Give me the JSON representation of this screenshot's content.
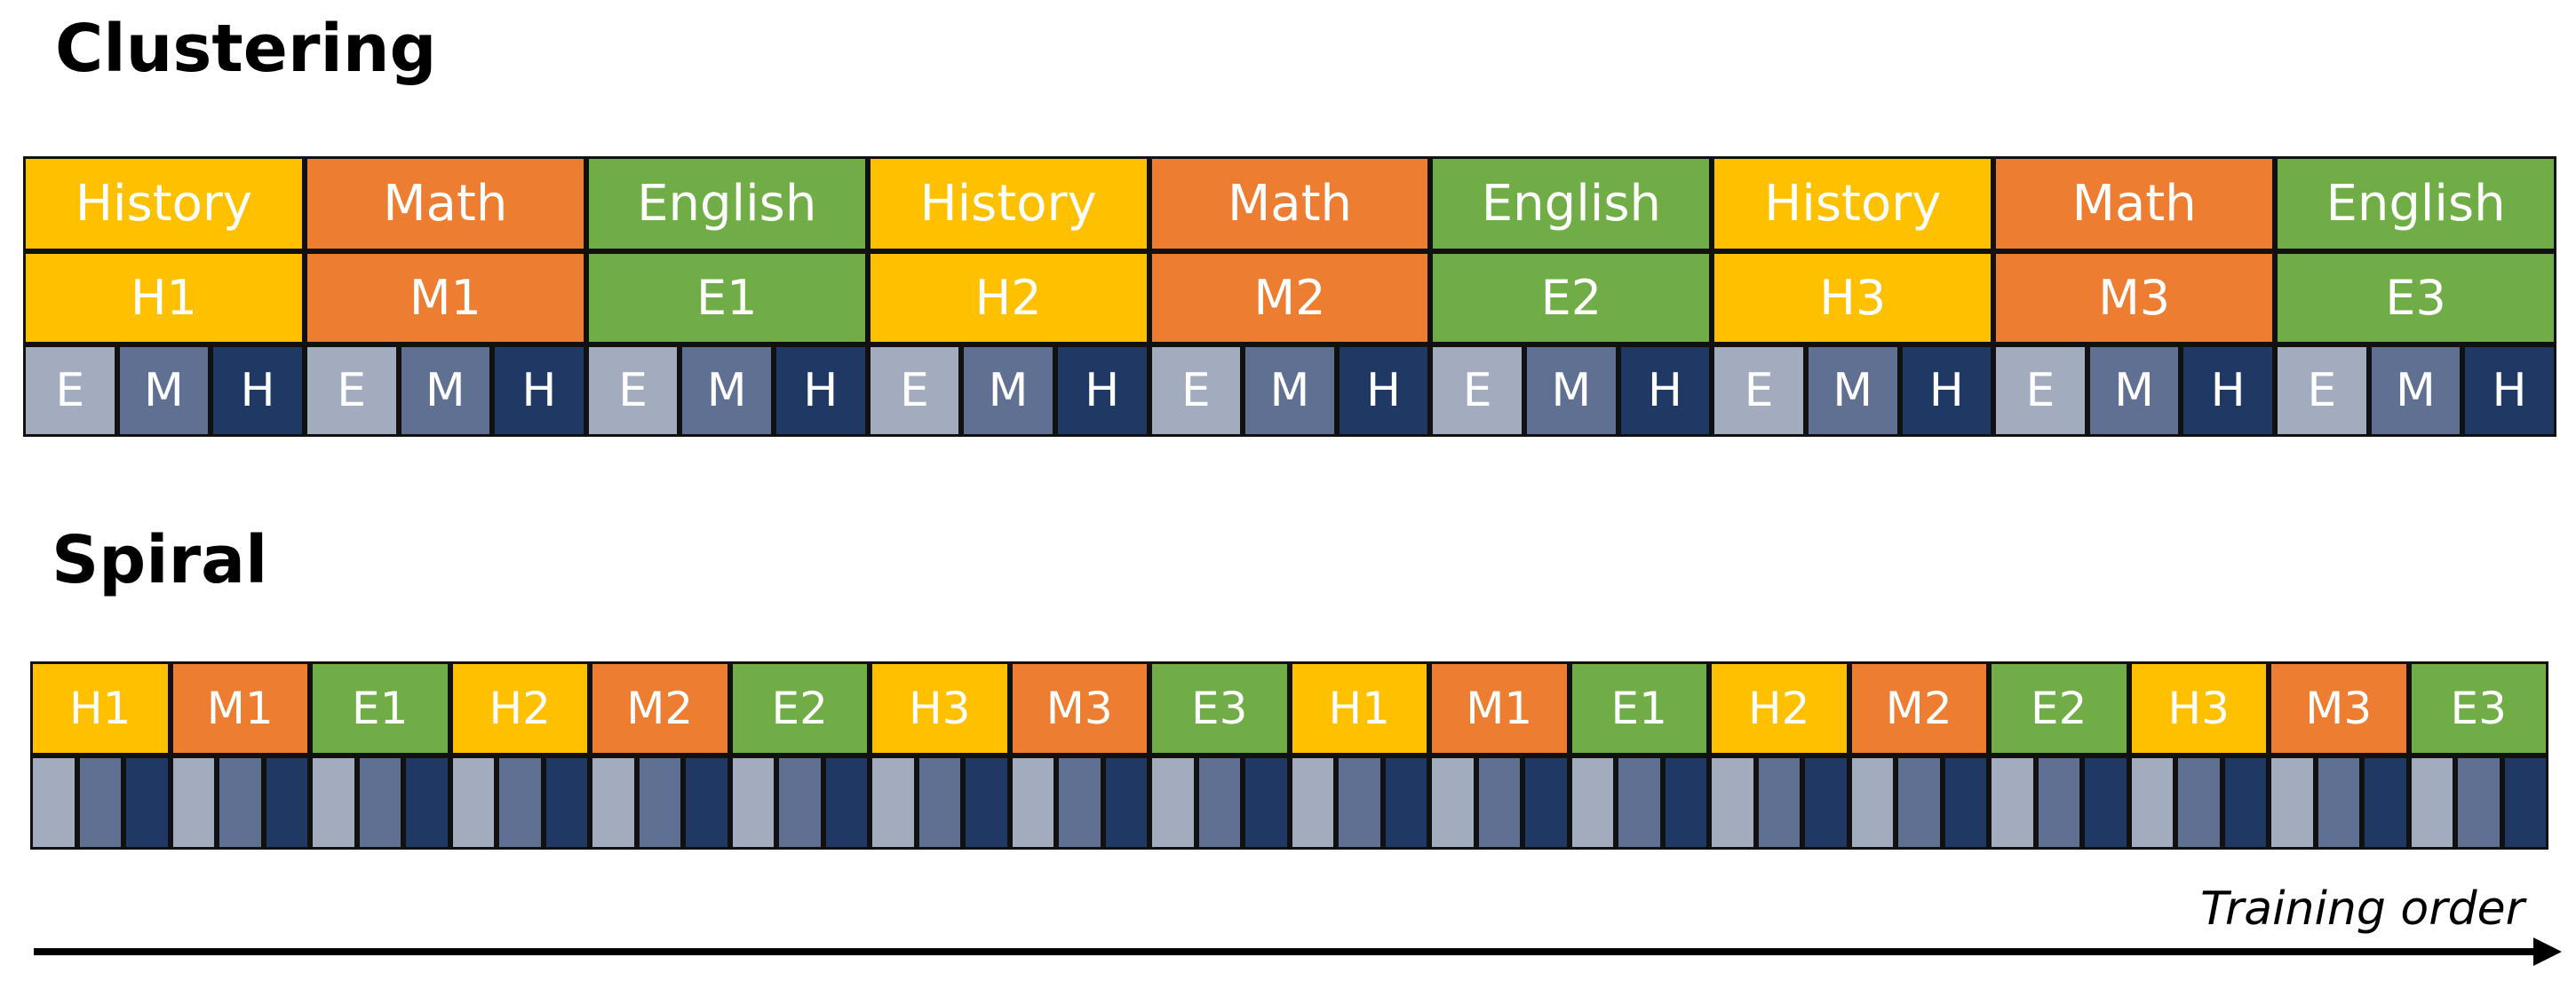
{
  "colors": {
    "history": "#ffc000",
    "math": "#ed7d31",
    "english": "#70ad47",
    "difficulty_e": "#a3acbe",
    "difficulty_m": "#5f7092",
    "difficulty_h": "#1f3864",
    "arrow": "#000000"
  },
  "clustering": {
    "title": "Clustering",
    "subjects": [
      {
        "label": "History",
        "subject": "history"
      },
      {
        "label": "Math",
        "subject": "math"
      },
      {
        "label": "English",
        "subject": "english"
      },
      {
        "label": "History",
        "subject": "history"
      },
      {
        "label": "Math",
        "subject": "math"
      },
      {
        "label": "English",
        "subject": "english"
      },
      {
        "label": "History",
        "subject": "history"
      },
      {
        "label": "Math",
        "subject": "math"
      },
      {
        "label": "English",
        "subject": "english"
      }
    ],
    "units": [
      {
        "label": "H1",
        "subject": "history"
      },
      {
        "label": "M1",
        "subject": "math"
      },
      {
        "label": "E1",
        "subject": "english"
      },
      {
        "label": "H2",
        "subject": "history"
      },
      {
        "label": "M2",
        "subject": "math"
      },
      {
        "label": "E2",
        "subject": "english"
      },
      {
        "label": "H3",
        "subject": "history"
      },
      {
        "label": "M3",
        "subject": "math"
      },
      {
        "label": "E3",
        "subject": "english"
      }
    ],
    "difficulty_labels": [
      "E",
      "M",
      "H"
    ]
  },
  "spiral": {
    "title": "Spiral",
    "units": [
      {
        "label": "H1",
        "subject": "history"
      },
      {
        "label": "M1",
        "subject": "math"
      },
      {
        "label": "E1",
        "subject": "english"
      },
      {
        "label": "H2",
        "subject": "history"
      },
      {
        "label": "M2",
        "subject": "math"
      },
      {
        "label": "E2",
        "subject": "english"
      },
      {
        "label": "H3",
        "subject": "history"
      },
      {
        "label": "M3",
        "subject": "math"
      },
      {
        "label": "E3",
        "subject": "english"
      },
      {
        "label": "H1",
        "subject": "history"
      },
      {
        "label": "M1",
        "subject": "math"
      },
      {
        "label": "E1",
        "subject": "english"
      },
      {
        "label": "H2",
        "subject": "history"
      },
      {
        "label": "M2",
        "subject": "math"
      },
      {
        "label": "E2",
        "subject": "english"
      },
      {
        "label": "H3",
        "subject": "history"
      },
      {
        "label": "M3",
        "subject": "math"
      },
      {
        "label": "E3",
        "subject": "english"
      }
    ]
  },
  "arrow": {
    "label": "Training order"
  }
}
